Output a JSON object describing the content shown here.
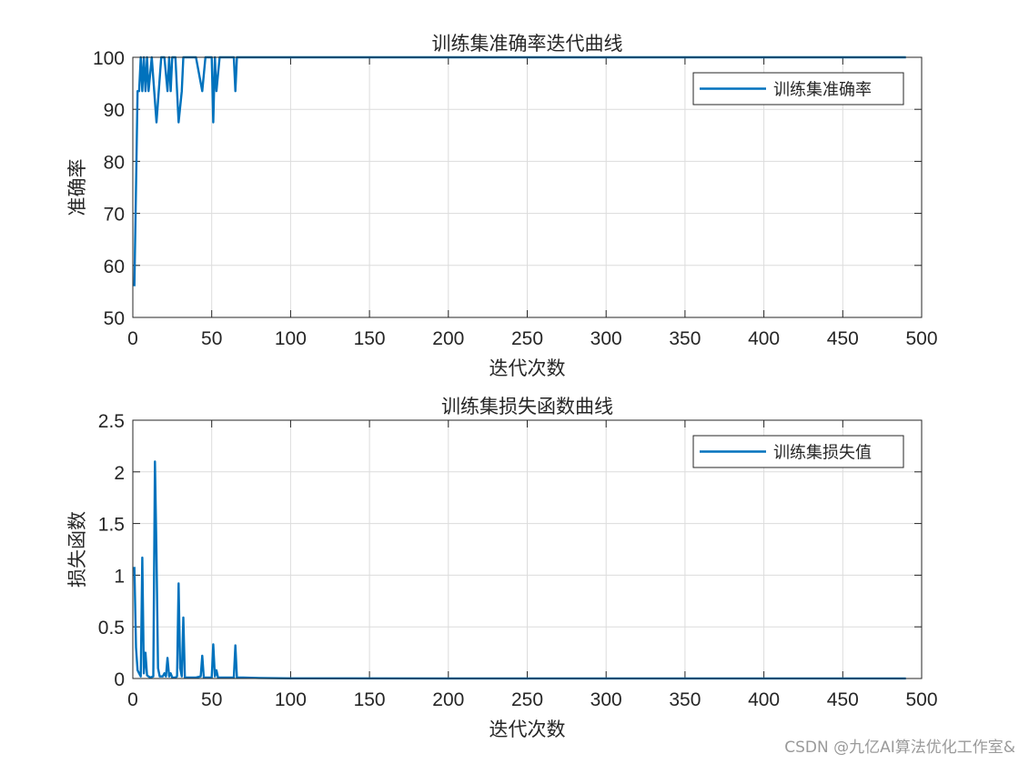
{
  "watermark": "CSDN @九亿AI算法优化工作室&",
  "chart_data": [
    {
      "type": "line",
      "title": "训练集准确率迭代曲线",
      "xlabel": "迭代次数",
      "ylabel": "准确率",
      "xlim": [
        0,
        500
      ],
      "ylim": [
        50,
        100
      ],
      "xticks": [
        0,
        50,
        100,
        150,
        200,
        250,
        300,
        350,
        400,
        450,
        500
      ],
      "yticks": [
        50,
        60,
        70,
        80,
        90,
        100
      ],
      "grid": true,
      "legend_position": "top-right",
      "series": [
        {
          "name": "训练集准确率",
          "color": "#0072bd",
          "x": [
            1,
            2,
            3,
            4,
            5,
            6,
            7,
            8,
            9,
            10,
            12,
            15,
            18,
            20,
            22,
            23,
            24,
            25,
            27,
            29,
            31,
            32,
            33,
            35,
            40,
            44,
            46,
            50,
            51,
            52,
            53,
            55,
            57,
            60,
            64,
            65,
            66,
            70,
            80,
            100,
            200,
            300,
            400,
            490
          ],
          "values": [
            56,
            75,
            93.5,
            93.5,
            100,
            93.5,
            100,
            93.5,
            100,
            93.5,
            100,
            87.5,
            100,
            100,
            93.5,
            100,
            93.5,
            100,
            100,
            87.5,
            93.5,
            100,
            100,
            100,
            100,
            93.5,
            100,
            100,
            87.5,
            100,
            93.5,
            100,
            100,
            100,
            100,
            93.5,
            100,
            100,
            100,
            100,
            100,
            100,
            100,
            100
          ]
        }
      ]
    },
    {
      "type": "line",
      "title": "训练集损失函数曲线",
      "xlabel": "迭代次数",
      "ylabel": "损失函数",
      "xlim": [
        0,
        500
      ],
      "ylim": [
        0,
        2.5
      ],
      "xticks": [
        0,
        50,
        100,
        150,
        200,
        250,
        300,
        350,
        400,
        450,
        500
      ],
      "yticks": [
        0,
        0.5,
        1,
        1.5,
        2,
        2.5
      ],
      "grid": true,
      "legend_position": "top-right",
      "series": [
        {
          "name": "训练集损失值",
          "color": "#0072bd",
          "x": [
            1,
            2,
            3,
            4,
            5,
            6,
            7,
            8,
            9,
            10,
            11,
            13,
            14,
            15,
            16,
            17,
            19,
            20,
            21,
            22,
            23,
            24,
            25,
            27,
            28,
            29,
            30,
            31,
            32,
            33,
            35,
            40,
            43,
            44,
            45,
            50,
            51,
            52,
            53,
            54,
            56,
            60,
            64,
            65,
            66,
            70,
            80,
            100,
            200,
            300,
            400,
            490
          ],
          "values": [
            1.08,
            0.3,
            0.08,
            0.05,
            0.02,
            1.17,
            0.05,
            0.25,
            0.03,
            0.02,
            0.01,
            0.02,
            2.1,
            1.2,
            0.1,
            0.02,
            0.02,
            0.05,
            0.02,
            0.2,
            0.02,
            0.05,
            0.01,
            0.01,
            0.02,
            0.92,
            0.1,
            0.02,
            0.59,
            0.01,
            0.01,
            0.01,
            0.02,
            0.22,
            0.01,
            0.01,
            0.33,
            0.02,
            0.08,
            0.01,
            0.01,
            0.01,
            0.01,
            0.32,
            0.01,
            0.01,
            0.005,
            0.002,
            0.001,
            0.001,
            0.001,
            0.001
          ]
        }
      ]
    }
  ]
}
